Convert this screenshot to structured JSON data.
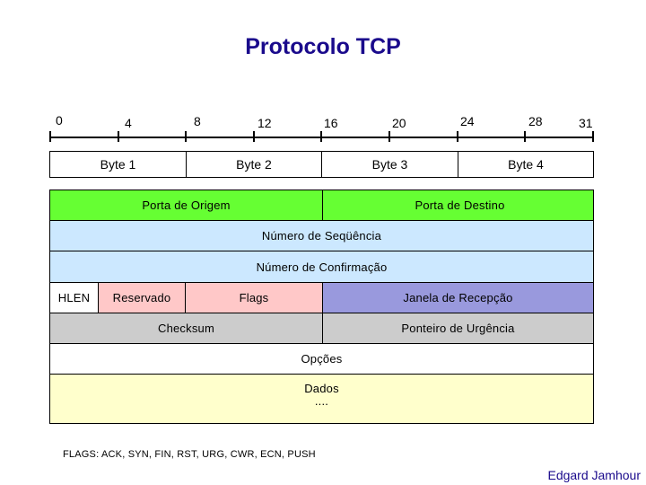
{
  "title": "Protocolo TCP",
  "ruler": {
    "ticks": [
      "0",
      "4",
      "8",
      "12",
      "16",
      "20",
      "24",
      "28",
      "31"
    ]
  },
  "bytes": [
    "Byte 1",
    "Byte 2",
    "Byte 3",
    "Byte 4"
  ],
  "fields": {
    "source_port": "Porta de Origem",
    "dest_port": "Porta de Destino",
    "sequence_number": "Número de Seqüência",
    "ack_number": "Número de Confirmação",
    "hlen": "HLEN",
    "reserved": "Reservado",
    "flags": "Flags",
    "window": "Janela de Recepção",
    "checksum": "Checksum",
    "urgent_pointer": "Ponteiro de Urgência",
    "options": "Opções",
    "data": "Dados",
    "data_ellipsis": "...."
  },
  "colors": {
    "title": "#1a0a8c",
    "ports": "#66ff33",
    "sequence": "#cce8ff",
    "reserved": "#ffc8c8",
    "window": "#9999dd",
    "checksum_row": "#cccccc",
    "options": "#ffffff",
    "data": "#ffffcc"
  },
  "footnote": "FLAGS: ACK, SYN, FIN, RST, URG, CWR, ECN, PUSH",
  "author": "Edgard Jamhour"
}
